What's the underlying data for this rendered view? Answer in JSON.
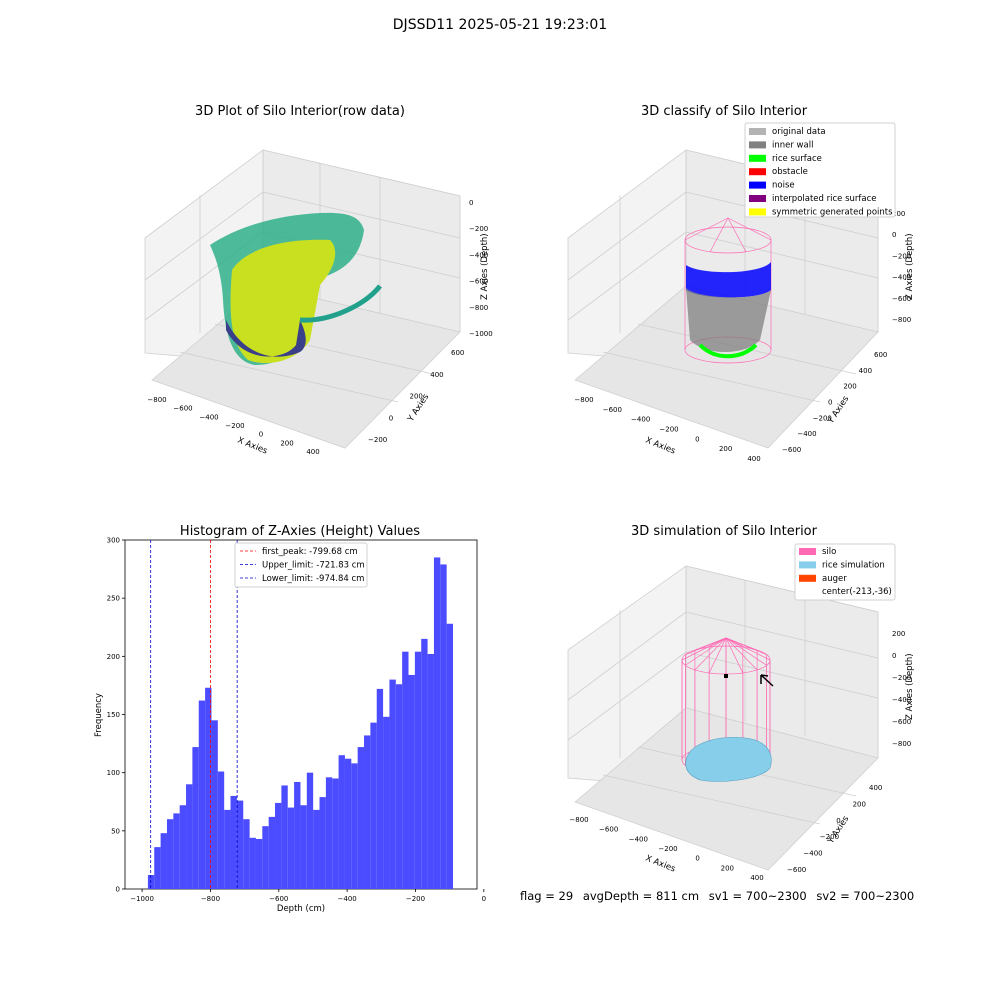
{
  "suptitle": "DJSSD11 2025-05-21 19:23:01",
  "panels": {
    "raw": {
      "title": "3D Plot of Silo Interior(row data)",
      "xlabel": "X Axies",
      "ylabel": "Y Axies",
      "zlabel": "Z Axies (Depth)",
      "xticks": [
        "−800",
        "−600",
        "−400",
        "−200",
        "0",
        "200",
        "400"
      ],
      "yticks": [
        "−200",
        "0",
        "200",
        "400",
        "600"
      ],
      "zticks": [
        "0",
        "−200",
        "−400",
        "−600",
        "−800",
        "−1000"
      ]
    },
    "classify": {
      "title": "3D classify of Silo Interior",
      "xlabel": "X Axies",
      "ylabel": "Y Axies",
      "zlabel": "Z Axies (Depth)",
      "xticks": [
        "−800",
        "−600",
        "−400",
        "−200",
        "0",
        "200",
        "400"
      ],
      "yticks": [
        "−600",
        "−400",
        "−200",
        "0",
        "200",
        "400",
        "600"
      ],
      "zticks": [
        "200",
        "0",
        "−200",
        "−400",
        "−600",
        "−800"
      ],
      "legend": [
        {
          "label": "original data",
          "color": "#b3b3b3"
        },
        {
          "label": "inner wall",
          "color": "#808080"
        },
        {
          "label": "rice surface",
          "color": "#00ff00"
        },
        {
          "label": "obstacle",
          "color": "#ff0000"
        },
        {
          "label": "noise",
          "color": "#0000ff"
        },
        {
          "label": "interpolated rice surface",
          "color": "#800080"
        },
        {
          "label": "symmetric generated points",
          "color": "#ffff00"
        }
      ]
    },
    "simulation": {
      "title": "3D simulation of Silo Interior",
      "xlabel": "X Axies",
      "ylabel": "Y Axies",
      "zlabel": "Z Axies (Depth)",
      "xticks": [
        "−800",
        "−600",
        "−400",
        "−200",
        "0",
        "200",
        "400"
      ],
      "yticks": [
        "−600",
        "−400",
        "−200",
        "0",
        "200",
        "400"
      ],
      "zticks": [
        "200",
        "0",
        "−200",
        "−400",
        "−600",
        "−800"
      ],
      "legend": [
        {
          "label": "silo",
          "color": "#ff69b4"
        },
        {
          "label": "rice simulation",
          "color": "#87ceeb"
        },
        {
          "label": "auger",
          "color": "#ff4500"
        },
        {
          "label": "center(-213,-36)",
          "color": ""
        }
      ]
    }
  },
  "status": {
    "flag": "flag = 29",
    "avg_depth": "avgDepth = 811 cm",
    "sv1": "sv1 = 700~2300",
    "sv2": "sv2 = 700~2300"
  },
  "chart_data": {
    "type": "bar",
    "title": "Histogram of Z-Axies (Height) Values",
    "xlabel": "Depth (cm)",
    "ylabel": "Frequency",
    "xlim": [
      -1050,
      -20
    ],
    "ylim": [
      0,
      300
    ],
    "xticks": [
      -1000,
      -800,
      -600,
      -400,
      -200,
      0
    ],
    "xtick_labels": [
      "−1000",
      "−800",
      "−600",
      "−400",
      "−200",
      "0"
    ],
    "yticks": [
      0,
      50,
      100,
      150,
      200,
      250,
      300
    ],
    "bin_start": -983,
    "bin_width": 18.6,
    "values": [
      12,
      36,
      48,
      60,
      65,
      72,
      90,
      122,
      162,
      173,
      145,
      101,
      68,
      80,
      76,
      60,
      44,
      43,
      54,
      62,
      74,
      89,
      70,
      92,
      72,
      100,
      68,
      79,
      96,
      95,
      115,
      112,
      108,
      122,
      132,
      143,
      172,
      148,
      180,
      176,
      204,
      184,
      204,
      215,
      202,
      285,
      279,
      228
    ],
    "bar_color": "#4b4bff",
    "vlines": [
      {
        "label": "first_peak: -799.68 cm",
        "x": -799.68,
        "color": "#ff0000"
      },
      {
        "label": "Upper_limit: -721.83 cm",
        "x": -721.83,
        "color": "#0000cc"
      },
      {
        "label": "Lower_limit: -974.84 cm",
        "x": -974.84,
        "color": "#0000cc"
      }
    ]
  }
}
